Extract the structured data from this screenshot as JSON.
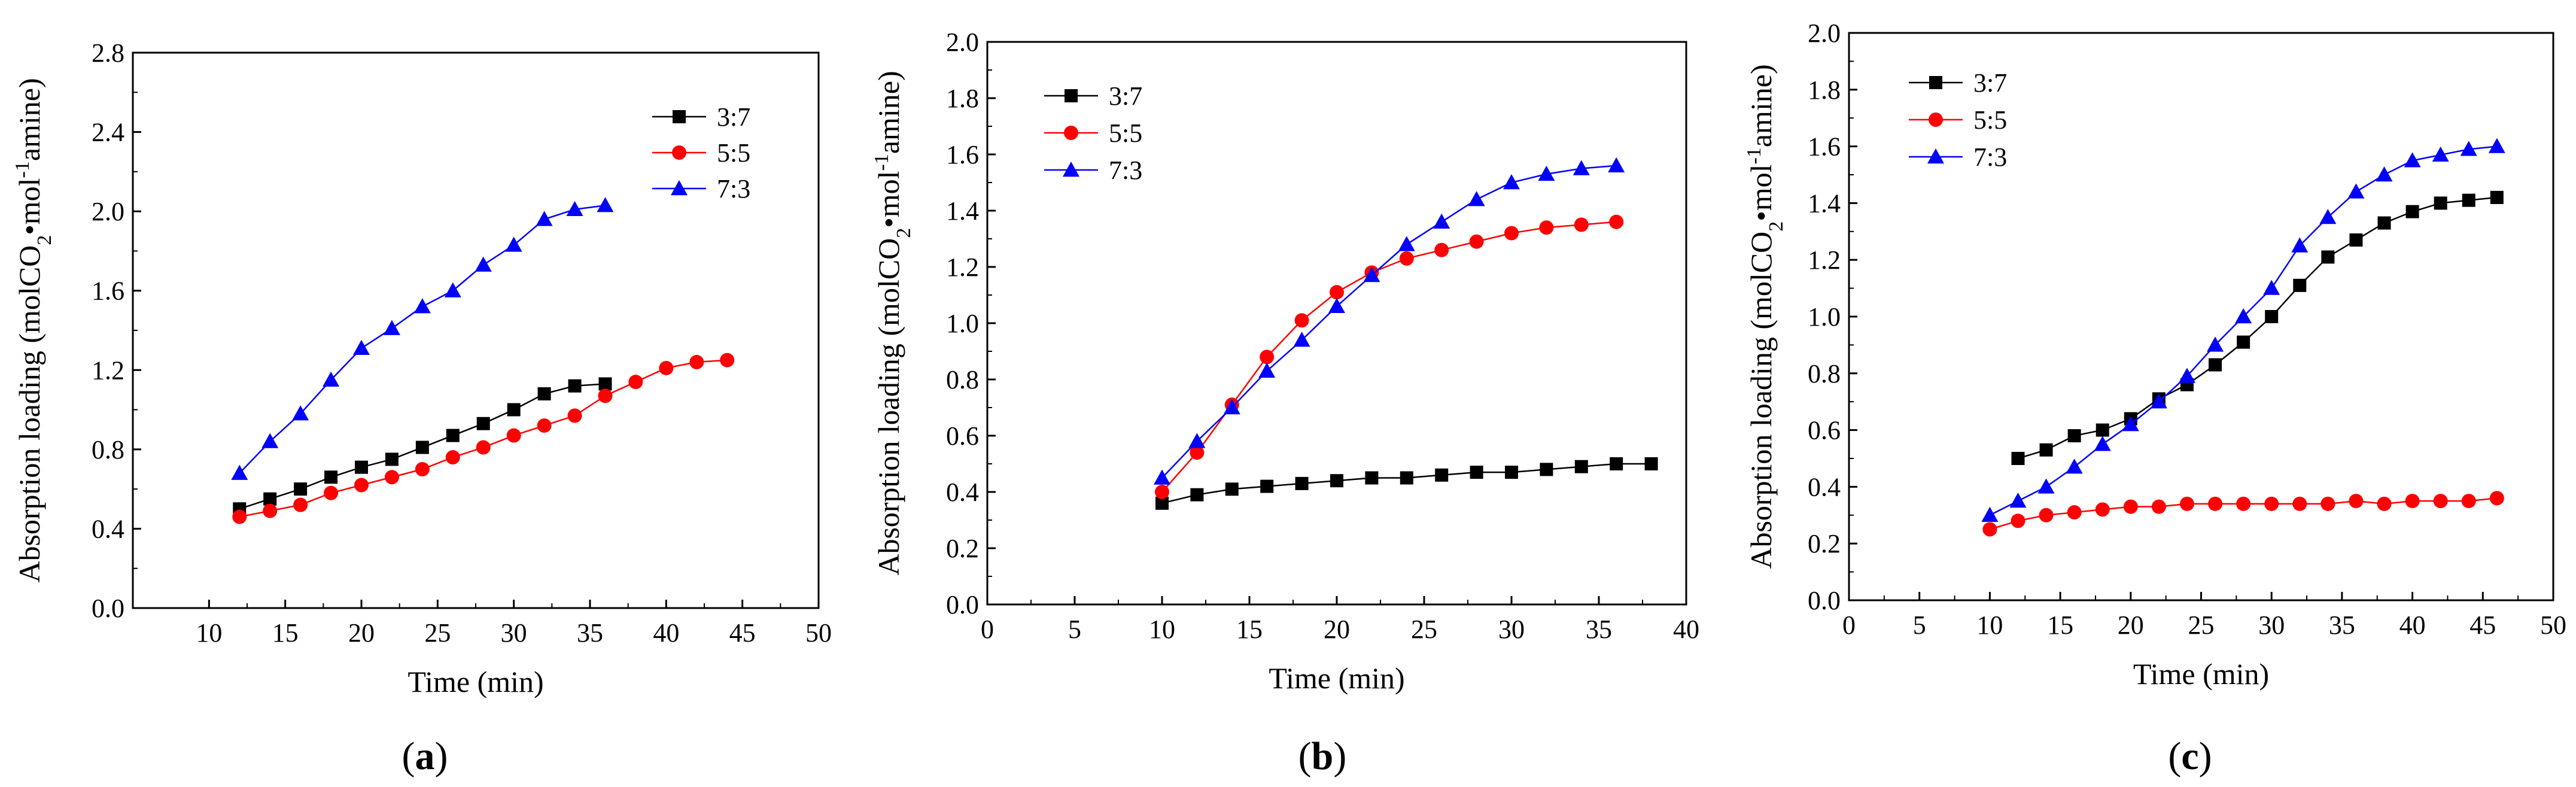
{
  "chart_data": [
    {
      "type": "line",
      "panel_label": "(a)",
      "panel_letter": "a",
      "xlabel": "Time (min)",
      "ylabel_parts": [
        "Absorption loading (molCO",
        "2",
        "•mol",
        "-1",
        "amine)"
      ],
      "xlim": [
        5,
        50
      ],
      "ylim": [
        0.0,
        2.8
      ],
      "xticks": [
        10,
        15,
        20,
        25,
        30,
        35,
        40,
        45,
        50
      ],
      "yticks": [
        0.0,
        0.4,
        0.8,
        1.2,
        1.6,
        2.0,
        2.4,
        2.8
      ],
      "xtick_labels": [
        "10",
        "15",
        "20",
        "25",
        "30",
        "35",
        "40",
        "45",
        "50"
      ],
      "ytick_labels": [
        "0.0",
        "0.4",
        "0.8",
        "1.2",
        "1.6",
        "2.0",
        "2.4",
        "2.8"
      ],
      "legend_position": "top-right",
      "series": [
        {
          "name": "3:7",
          "color": "#000000",
          "marker": "square",
          "x": [
            12,
            14,
            16,
            18,
            20,
            22,
            24,
            26,
            28,
            30,
            32,
            34,
            36
          ],
          "y": [
            0.5,
            0.55,
            0.6,
            0.66,
            0.71,
            0.75,
            0.81,
            0.87,
            0.93,
            1.0,
            1.08,
            1.12,
            1.13
          ]
        },
        {
          "name": "5:5",
          "color": "#ff0000",
          "marker": "circle",
          "x": [
            12,
            14,
            16,
            18,
            20,
            22,
            24,
            26,
            28,
            30,
            32,
            34,
            36,
            38,
            40,
            42,
            44
          ],
          "y": [
            0.46,
            0.49,
            0.52,
            0.58,
            0.62,
            0.66,
            0.7,
            0.76,
            0.81,
            0.87,
            0.92,
            0.97,
            1.07,
            1.14,
            1.21,
            1.24,
            1.25
          ]
        },
        {
          "name": "7:3",
          "color": "#0000ff",
          "marker": "triangle",
          "x": [
            12,
            14,
            16,
            18,
            20,
            22,
            24,
            26,
            28,
            30,
            32,
            34,
            36
          ],
          "y": [
            0.68,
            0.84,
            0.98,
            1.15,
            1.31,
            1.41,
            1.52,
            1.6,
            1.73,
            1.83,
            1.96,
            2.01,
            2.03
          ]
        }
      ]
    },
    {
      "type": "line",
      "panel_label": "(b)",
      "panel_letter": "b",
      "xlabel": "Time (min)",
      "ylabel_parts": [
        "Absorption loading (molCO",
        "2",
        "•mol",
        "-1",
        "amine)"
      ],
      "xlim": [
        0,
        40
      ],
      "ylim": [
        0.0,
        2.0
      ],
      "xticks": [
        0,
        5,
        10,
        15,
        20,
        25,
        30,
        35,
        40
      ],
      "yticks": [
        0.0,
        0.2,
        0.4,
        0.6,
        0.8,
        1.0,
        1.2,
        1.4,
        1.6,
        1.8,
        2.0
      ],
      "xtick_labels": [
        "0",
        "5",
        "10",
        "15",
        "20",
        "25",
        "30",
        "35",
        "40"
      ],
      "ytick_labels": [
        "0.0",
        "0.2",
        "0.4",
        "0.6",
        "0.8",
        "1.0",
        "1.2",
        "1.4",
        "1.6",
        "1.8",
        "2.0"
      ],
      "legend_position": "top-left",
      "series": [
        {
          "name": "3:7",
          "color": "#000000",
          "marker": "square",
          "x": [
            10,
            12,
            14,
            16,
            18,
            20,
            22,
            24,
            26,
            28,
            30,
            32,
            34,
            36,
            38
          ],
          "y": [
            0.36,
            0.39,
            0.41,
            0.42,
            0.43,
            0.44,
            0.45,
            0.45,
            0.46,
            0.47,
            0.47,
            0.48,
            0.49,
            0.5,
            0.5
          ]
        },
        {
          "name": "5:5",
          "color": "#ff0000",
          "marker": "circle",
          "x": [
            10,
            12,
            14,
            16,
            18,
            20,
            22,
            24,
            26,
            28,
            30,
            32,
            34,
            36
          ],
          "y": [
            0.4,
            0.54,
            0.71,
            0.88,
            1.01,
            1.11,
            1.18,
            1.23,
            1.26,
            1.29,
            1.32,
            1.34,
            1.35,
            1.36
          ]
        },
        {
          "name": "7:3",
          "color": "#0000ff",
          "marker": "triangle",
          "x": [
            10,
            12,
            14,
            16,
            18,
            20,
            22,
            24,
            26,
            28,
            30,
            32,
            34,
            36
          ],
          "y": [
            0.45,
            0.58,
            0.7,
            0.83,
            0.94,
            1.06,
            1.17,
            1.28,
            1.36,
            1.44,
            1.5,
            1.53,
            1.55,
            1.56
          ]
        }
      ]
    },
    {
      "type": "line",
      "panel_label": "(c)",
      "panel_letter": "c",
      "xlabel": "Time (min)",
      "ylabel_parts": [
        "Absorption loading (molCO",
        "2",
        "•mol",
        "-1",
        "amine)"
      ],
      "xlim": [
        0,
        50
      ],
      "ylim": [
        0.0,
        2.0
      ],
      "xticks": [
        0,
        5,
        10,
        15,
        20,
        25,
        30,
        35,
        40,
        45,
        50
      ],
      "yticks": [
        0.0,
        0.2,
        0.4,
        0.6,
        0.8,
        1.0,
        1.2,
        1.4,
        1.6,
        1.8,
        2.0
      ],
      "xtick_labels": [
        "0",
        "5",
        "10",
        "15",
        "20",
        "25",
        "30",
        "35",
        "40",
        "45",
        "50"
      ],
      "ytick_labels": [
        "0.0",
        "0.2",
        "0.4",
        "0.6",
        "0.8",
        "1.0",
        "1.2",
        "1.4",
        "1.6",
        "1.8",
        "2.0"
      ],
      "legend_position": "top-left",
      "series": [
        {
          "name": "3:7",
          "color": "#000000",
          "marker": "square",
          "x": [
            12,
            14,
            16,
            18,
            20,
            22,
            24,
            26,
            28,
            30,
            32,
            34,
            36,
            38,
            40,
            42,
            44,
            46
          ],
          "y": [
            0.5,
            0.53,
            0.58,
            0.6,
            0.64,
            0.71,
            0.76,
            0.83,
            0.91,
            1.0,
            1.11,
            1.21,
            1.27,
            1.33,
            1.37,
            1.4,
            1.41,
            1.42
          ]
        },
        {
          "name": "5:5",
          "color": "#ff0000",
          "marker": "circle",
          "x": [
            10,
            12,
            14,
            16,
            18,
            20,
            22,
            24,
            26,
            28,
            30,
            32,
            34,
            36,
            38,
            40,
            42,
            44,
            46
          ],
          "y": [
            0.25,
            0.28,
            0.3,
            0.31,
            0.32,
            0.33,
            0.33,
            0.34,
            0.34,
            0.34,
            0.34,
            0.34,
            0.34,
            0.35,
            0.34,
            0.35,
            0.35,
            0.35,
            0.36
          ]
        },
        {
          "name": "7:3",
          "color": "#0000ff",
          "marker": "triangle",
          "x": [
            10,
            12,
            14,
            16,
            18,
            20,
            22,
            24,
            26,
            28,
            30,
            32,
            34,
            36,
            38,
            40,
            42,
            44,
            46
          ],
          "y": [
            0.3,
            0.35,
            0.4,
            0.47,
            0.55,
            0.62,
            0.7,
            0.79,
            0.9,
            1.0,
            1.1,
            1.25,
            1.35,
            1.44,
            1.5,
            1.55,
            1.57,
            1.59,
            1.6
          ]
        }
      ]
    }
  ]
}
